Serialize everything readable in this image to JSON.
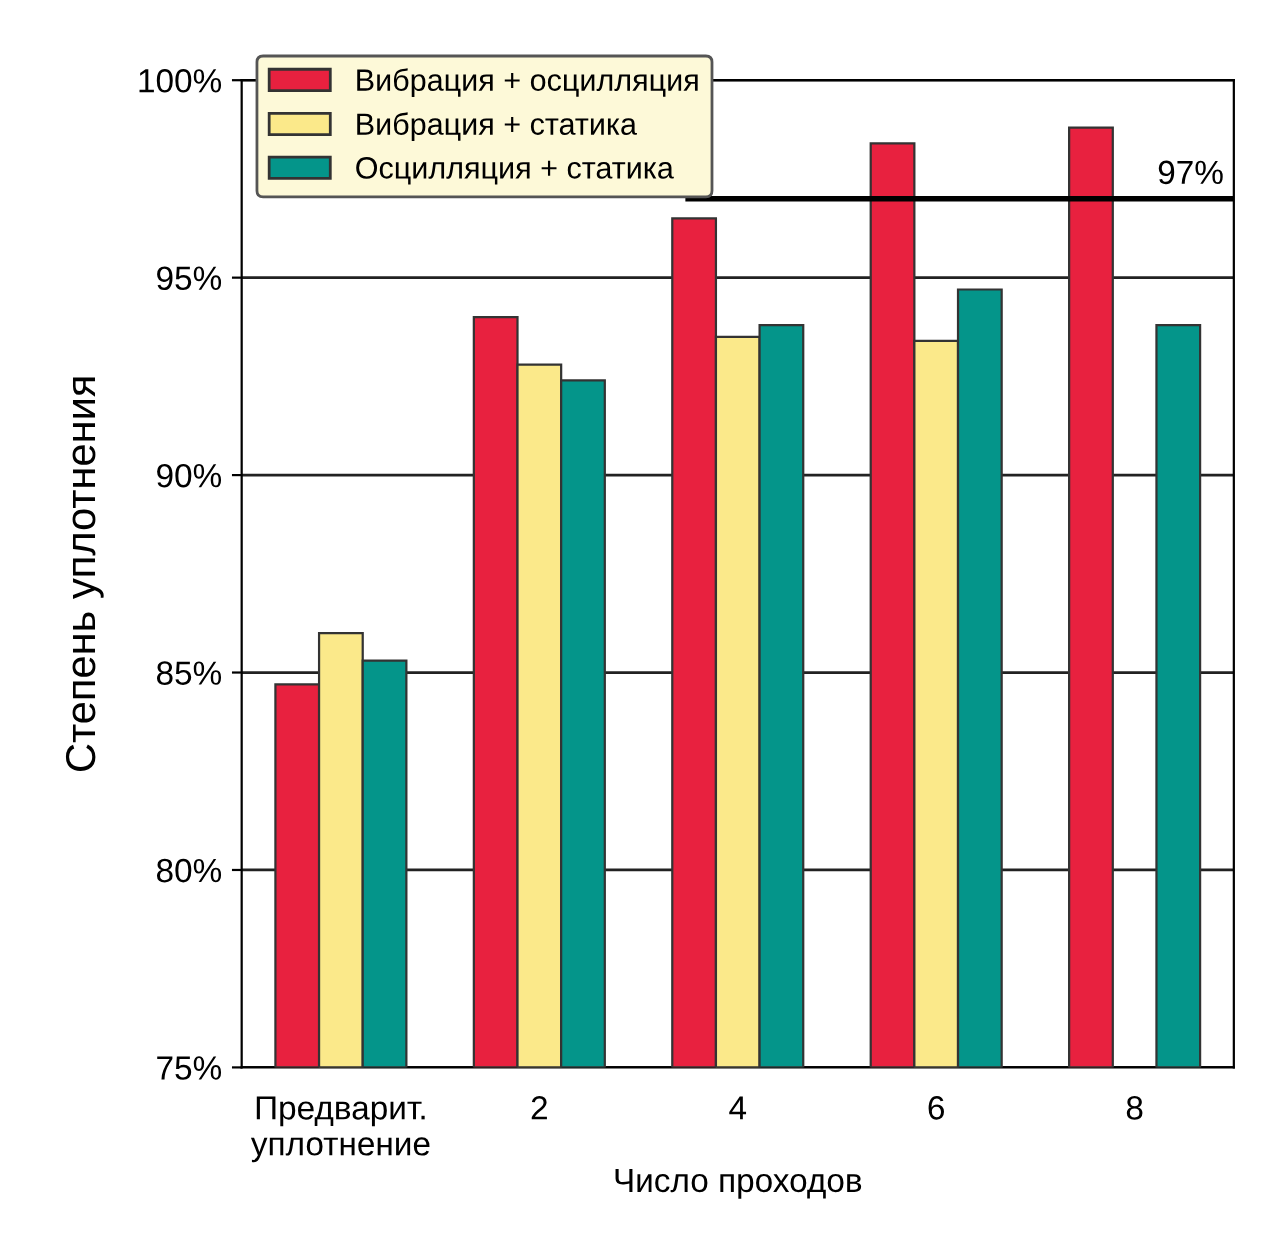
{
  "chart_data": {
    "type": "bar",
    "ylabel": "Степень уплотнения",
    "xlabel": "Число проходов",
    "categories": [
      "Предварит.\nуплотнение",
      "2",
      "4",
      "6",
      "8"
    ],
    "series": [
      {
        "name": "Вибрация + осцилляция",
        "color": "#e8213f",
        "values": [
          84.7,
          94.0,
          96.5,
          98.4,
          98.8
        ]
      },
      {
        "name": "Вибрация + статика",
        "color": "#fbe98a",
        "values": [
          86.0,
          92.8,
          93.5,
          93.4,
          null
        ]
      },
      {
        "name": "Осцилляция + статика",
        "color": "#04958a",
        "values": [
          85.3,
          92.4,
          93.8,
          94.7,
          93.8
        ]
      }
    ],
    "ylim": [
      75,
      100
    ],
    "yticks": [
      {
        "value": 75,
        "label": "75%"
      },
      {
        "value": 80,
        "label": "80%"
      },
      {
        "value": 85,
        "label": "85%"
      },
      {
        "value": 90,
        "label": "90%"
      },
      {
        "value": 95,
        "label": "95%"
      },
      {
        "value": 100,
        "label": "100%"
      }
    ],
    "ref_lines": [
      {
        "axis": "y",
        "value": 97,
        "label": "97%",
        "color": "#000000"
      }
    ],
    "grid": "y",
    "legend": "top left"
  }
}
